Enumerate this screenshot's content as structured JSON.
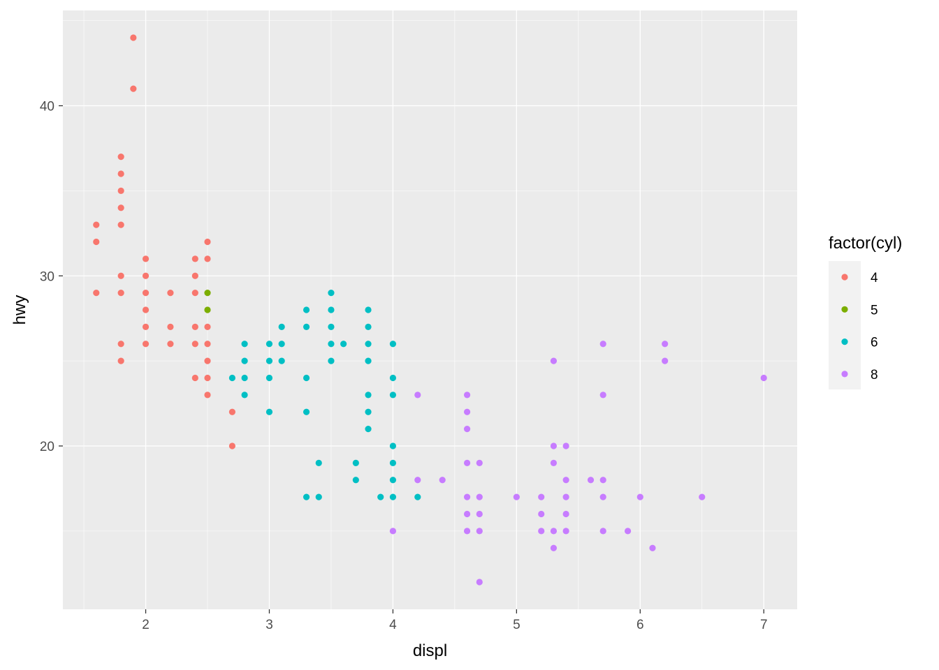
{
  "chart_data": {
    "type": "scatter",
    "title": "",
    "xlabel": "displ",
    "ylabel": "hwy",
    "xlim": [
      1.33,
      7.27
    ],
    "ylim": [
      10.4,
      45.6
    ],
    "x_ticks": [
      2,
      3,
      4,
      5,
      6,
      7
    ],
    "x_tick_labels": [
      "2",
      "3",
      "4",
      "5",
      "6",
      "7"
    ],
    "y_ticks": [
      20,
      30,
      40
    ],
    "y_tick_labels": [
      "20",
      "30",
      "40"
    ],
    "grid": true,
    "legend": {
      "title": "factor(cyl)",
      "placement": "right"
    },
    "series": [
      {
        "name": "4",
        "color": "#F8766D",
        "points": [
          [
            1.9,
            44
          ],
          [
            1.9,
            41
          ],
          [
            1.8,
            37
          ],
          [
            1.8,
            36
          ],
          [
            1.8,
            35
          ],
          [
            1.8,
            34
          ],
          [
            1.8,
            33
          ],
          [
            1.8,
            30
          ],
          [
            1.8,
            29
          ],
          [
            1.8,
            26
          ],
          [
            1.8,
            25
          ],
          [
            1.6,
            33
          ],
          [
            1.6,
            32
          ],
          [
            1.6,
            29
          ],
          [
            2.0,
            31
          ],
          [
            2.0,
            30
          ],
          [
            2.0,
            29
          ],
          [
            2.0,
            28
          ],
          [
            2.0,
            27
          ],
          [
            2.0,
            26
          ],
          [
            2.2,
            29
          ],
          [
            2.2,
            27
          ],
          [
            2.2,
            26
          ],
          [
            2.4,
            31
          ],
          [
            2.4,
            30
          ],
          [
            2.4,
            29
          ],
          [
            2.4,
            27
          ],
          [
            2.4,
            26
          ],
          [
            2.4,
            24
          ],
          [
            2.5,
            32
          ],
          [
            2.5,
            31
          ],
          [
            2.5,
            27
          ],
          [
            2.5,
            26
          ],
          [
            2.5,
            25
          ],
          [
            2.5,
            24
          ],
          [
            2.5,
            23
          ],
          [
            2.7,
            22
          ],
          [
            2.7,
            20
          ]
        ]
      },
      {
        "name": "5",
        "color": "#7CAE00",
        "points": [
          [
            2.5,
            29
          ],
          [
            2.5,
            28
          ]
        ]
      },
      {
        "name": "6",
        "color": "#00BFC4",
        "points": [
          [
            2.7,
            24
          ],
          [
            2.8,
            26
          ],
          [
            2.8,
            25
          ],
          [
            2.8,
            24
          ],
          [
            2.8,
            23
          ],
          [
            3.0,
            26
          ],
          [
            3.0,
            25
          ],
          [
            3.0,
            24
          ],
          [
            3.0,
            22
          ],
          [
            3.1,
            27
          ],
          [
            3.1,
            26
          ],
          [
            3.1,
            25
          ],
          [
            3.3,
            28
          ],
          [
            3.3,
            27
          ],
          [
            3.3,
            24
          ],
          [
            3.3,
            22
          ],
          [
            3.3,
            17
          ],
          [
            3.4,
            19
          ],
          [
            3.4,
            17
          ],
          [
            3.5,
            29
          ],
          [
            3.5,
            28
          ],
          [
            3.5,
            27
          ],
          [
            3.5,
            26
          ],
          [
            3.5,
            25
          ],
          [
            3.6,
            26
          ],
          [
            3.7,
            19
          ],
          [
            3.7,
            18
          ],
          [
            3.8,
            28
          ],
          [
            3.8,
            27
          ],
          [
            3.8,
            26
          ],
          [
            3.8,
            25
          ],
          [
            3.8,
            23
          ],
          [
            3.8,
            22
          ],
          [
            3.8,
            21
          ],
          [
            3.9,
            17
          ],
          [
            4.0,
            26
          ],
          [
            4.0,
            24
          ],
          [
            4.0,
            23
          ],
          [
            4.0,
            20
          ],
          [
            4.0,
            19
          ],
          [
            4.0,
            18
          ],
          [
            4.0,
            17
          ],
          [
            4.2,
            17
          ]
        ]
      },
      {
        "name": "8",
        "color": "#C77CFF",
        "points": [
          [
            4.0,
            15
          ],
          [
            4.2,
            23
          ],
          [
            4.2,
            18
          ],
          [
            4.4,
            18
          ],
          [
            4.6,
            23
          ],
          [
            4.6,
            22
          ],
          [
            4.6,
            21
          ],
          [
            4.6,
            19
          ],
          [
            4.6,
            17
          ],
          [
            4.6,
            16
          ],
          [
            4.6,
            15
          ],
          [
            4.7,
            19
          ],
          [
            4.7,
            17
          ],
          [
            4.7,
            16
          ],
          [
            4.7,
            15
          ],
          [
            4.7,
            12
          ],
          [
            5.0,
            17
          ],
          [
            5.2,
            17
          ],
          [
            5.2,
            16
          ],
          [
            5.2,
            15
          ],
          [
            5.3,
            25
          ],
          [
            5.3,
            20
          ],
          [
            5.3,
            19
          ],
          [
            5.3,
            15
          ],
          [
            5.3,
            14
          ],
          [
            5.4,
            20
          ],
          [
            5.4,
            18
          ],
          [
            5.4,
            17
          ],
          [
            5.4,
            16
          ],
          [
            5.4,
            15
          ],
          [
            5.6,
            18
          ],
          [
            5.7,
            26
          ],
          [
            5.7,
            23
          ],
          [
            5.7,
            18
          ],
          [
            5.7,
            17
          ],
          [
            5.7,
            15
          ],
          [
            5.9,
            15
          ],
          [
            6.0,
            17
          ],
          [
            6.1,
            14
          ],
          [
            6.2,
            26
          ],
          [
            6.2,
            25
          ],
          [
            6.5,
            17
          ],
          [
            7.0,
            24
          ]
        ]
      }
    ]
  }
}
